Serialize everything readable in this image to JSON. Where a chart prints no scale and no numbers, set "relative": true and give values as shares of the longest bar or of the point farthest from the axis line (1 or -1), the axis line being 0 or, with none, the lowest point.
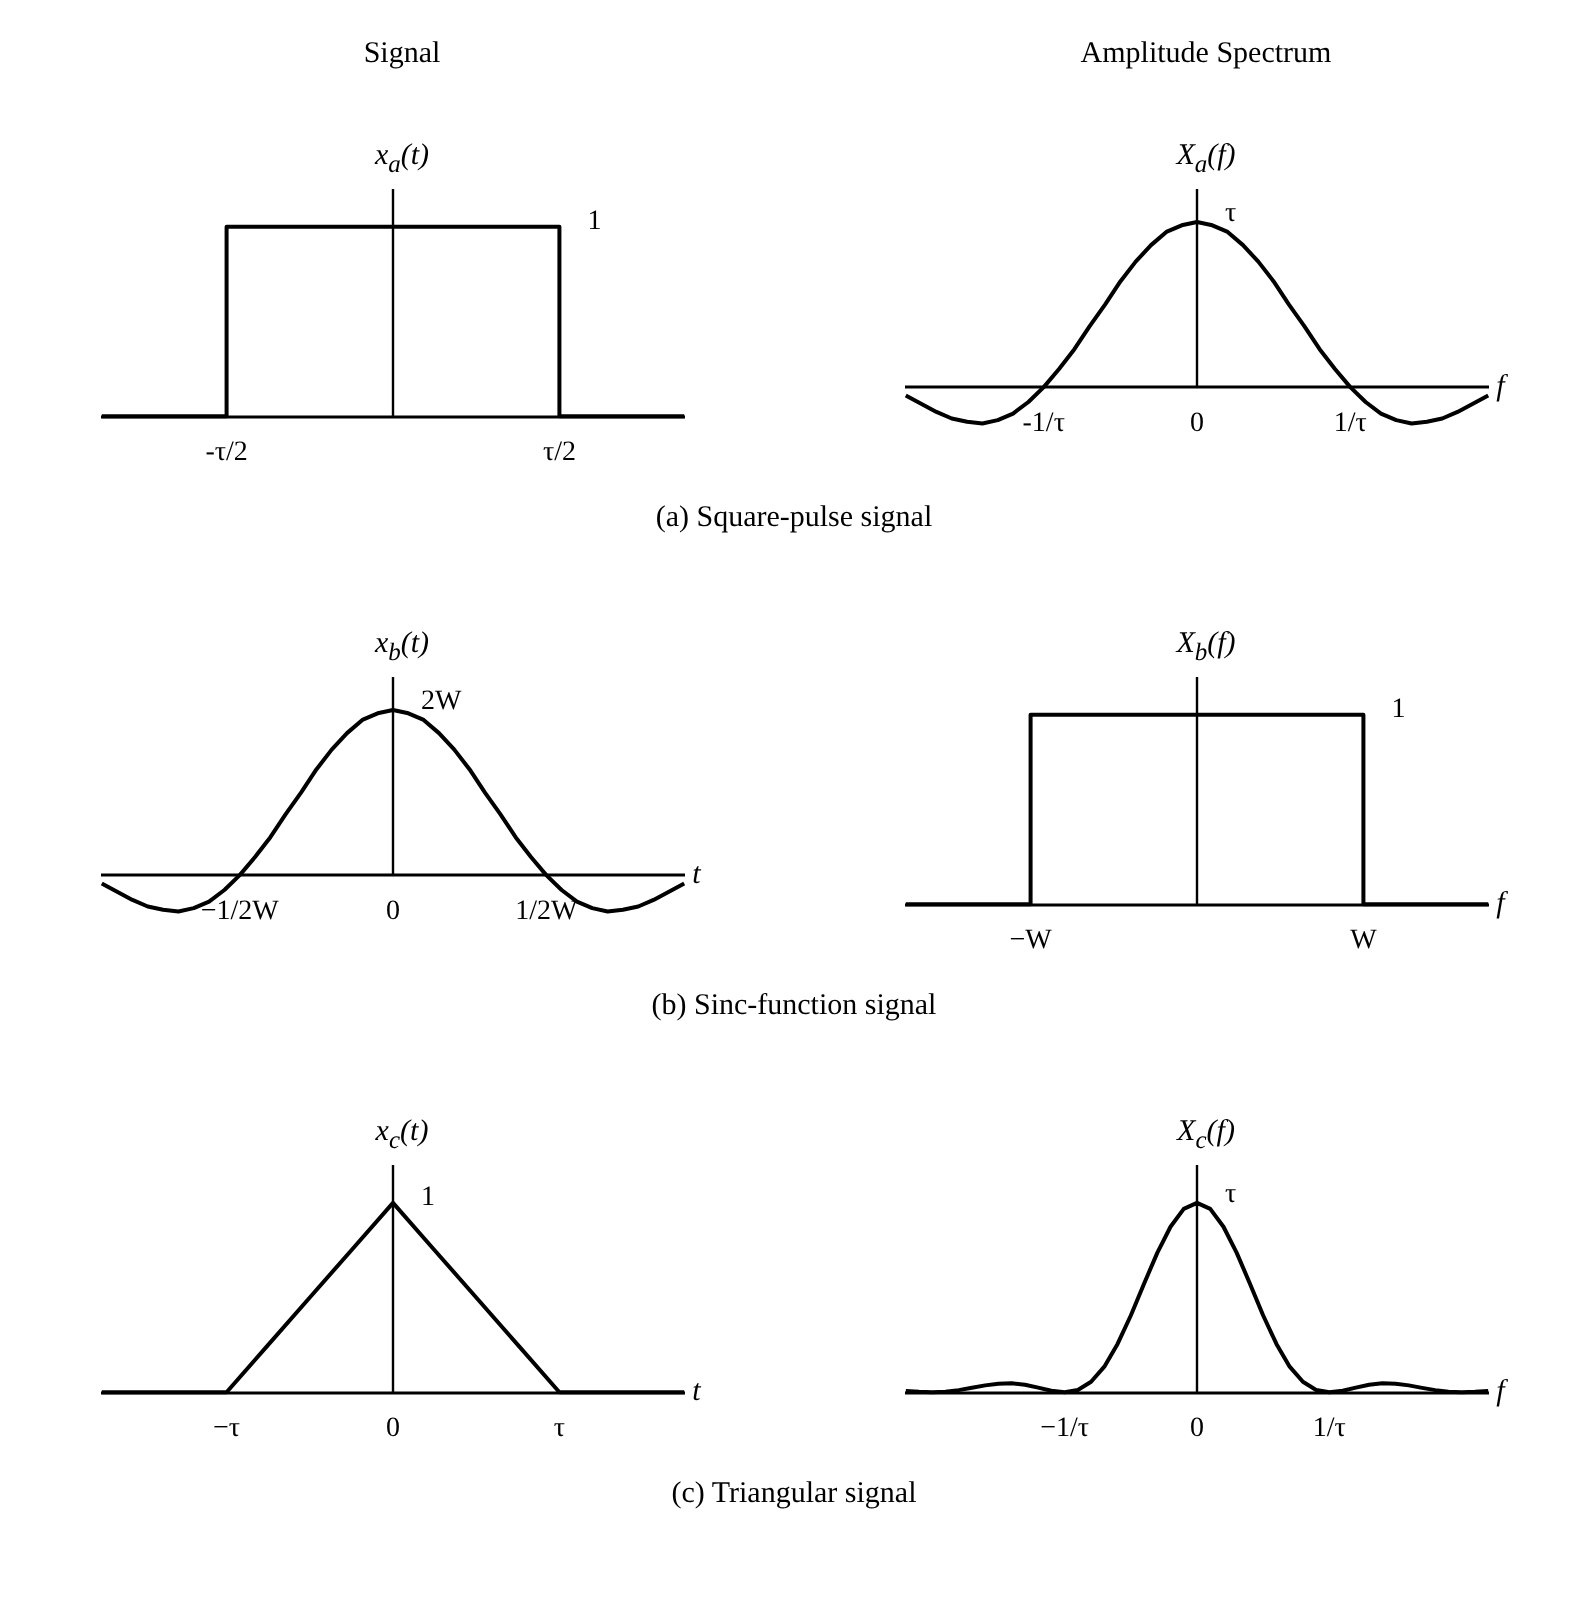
{
  "chart_data": [
    {
      "type": "step",
      "title": "Signal",
      "ylabel": "x$_{a}$(t)",
      "relative": true,
      "color": "#000000",
      "categories": [
        null,
        null,
        null,
        "-τ/2",
        null,
        null,
        null,
        null,
        null,
        null,
        null,
        "τ/2",
        null,
        null,
        null
      ],
      "values": [
        0,
        0,
        0,
        1,
        1,
        1,
        1,
        1,
        1,
        1,
        1,
        0,
        0,
        0,
        0
      ],
      "annotations": [
        {
          "text": "1",
          "x": "τ/2",
          "y": 1
        },
        "(a) Square-pulse signal"
      ]
    },
    {
      "type": "line",
      "title": "Amplitude Spectrum",
      "ylabel": "X$_{a}$(f)",
      "xlabel": "f",
      "relative": true,
      "color": "#000000",
      "categories": [
        null,
        null,
        null,
        null,
        null,
        null,
        null,
        null,
        null,
        "-1/τ",
        null,
        null,
        null,
        null,
        null,
        null,
        null,
        null,
        null,
        "0",
        null,
        null,
        null,
        null,
        null,
        null,
        null,
        null,
        null,
        "1/τ",
        null,
        null,
        null,
        null,
        null,
        null,
        null,
        null,
        null
      ],
      "values": [
        -0.05,
        -0.1,
        -0.15,
        -0.19,
        -0.21,
        -0.22,
        -0.2,
        -0.16,
        -0.09,
        0,
        0.11,
        0.23,
        0.37,
        0.5,
        0.64,
        0.76,
        0.86,
        0.94,
        0.98,
        1,
        0.98,
        0.94,
        0.86,
        0.76,
        0.64,
        0.5,
        0.37,
        0.23,
        0.11,
        0,
        -0.09,
        -0.16,
        -0.2,
        -0.22,
        -0.21,
        -0.19,
        -0.15,
        -0.1,
        -0.05
      ],
      "annotations": [
        {
          "text": "τ",
          "x": "0",
          "y": 1
        }
      ]
    },
    {
      "type": "line",
      "ylabel": "x$_{b}$(t)",
      "xlabel": "t",
      "relative": true,
      "color": "#000000",
      "categories": [
        null,
        null,
        null,
        null,
        null,
        null,
        null,
        null,
        null,
        "−1/2W",
        null,
        null,
        null,
        null,
        null,
        null,
        null,
        null,
        null,
        "0",
        null,
        null,
        null,
        null,
        null,
        null,
        null,
        null,
        null,
        "1/2W",
        null,
        null,
        null,
        null,
        null,
        null,
        null,
        null,
        null
      ],
      "values": [
        -0.05,
        -0.1,
        -0.15,
        -0.19,
        -0.21,
        -0.22,
        -0.2,
        -0.16,
        -0.09,
        0,
        0.11,
        0.23,
        0.37,
        0.5,
        0.64,
        0.76,
        0.86,
        0.94,
        0.98,
        1,
        0.98,
        0.94,
        0.86,
        0.76,
        0.64,
        0.5,
        0.37,
        0.23,
        0.11,
        0,
        -0.09,
        -0.16,
        -0.2,
        -0.22,
        -0.21,
        -0.19,
        -0.15,
        -0.1,
        -0.05
      ],
      "annotations": [
        {
          "text": "2W",
          "x": "0",
          "y": 1
        },
        "(b) Sinc-function signal"
      ]
    },
    {
      "type": "step",
      "ylabel": "X$_{b}$(f)",
      "xlabel": "f",
      "relative": true,
      "color": "#000000",
      "categories": [
        null,
        null,
        null,
        "−W",
        null,
        null,
        null,
        null,
        null,
        null,
        null,
        "W",
        null,
        null,
        null
      ],
      "values": [
        0,
        0,
        0,
        1,
        1,
        1,
        1,
        1,
        1,
        1,
        1,
        0,
        0,
        0,
        0
      ],
      "annotations": [
        {
          "text": "1",
          "x": "W",
          "y": 1
        }
      ]
    },
    {
      "type": "line",
      "ylabel": "x$_{c}$(t)",
      "xlabel": "t",
      "relative": true,
      "color": "#000000",
      "categories": [
        null,
        null,
        null,
        "−τ",
        null,
        null,
        null,
        "0",
        null,
        null,
        null,
        "τ",
        null,
        null,
        null
      ],
      "values": [
        0,
        0,
        0,
        0,
        0.25,
        0.5,
        0.75,
        1,
        0.75,
        0.5,
        0.25,
        0,
        0,
        0,
        0
      ],
      "annotations": [
        {
          "text": "1",
          "x": "0",
          "y": 1
        },
        "(c) Triangular signal"
      ]
    },
    {
      "type": "line",
      "ylabel": "X$_{c}$(f)",
      "xlabel": "f",
      "relative": true,
      "color": "#000000",
      "categories": [
        null,
        null,
        null,
        null,
        null,
        null,
        null,
        null,
        null,
        null,
        null,
        null,
        "−1/τ",
        null,
        null,
        null,
        null,
        null,
        null,
        null,
        null,
        null,
        "0",
        null,
        null,
        null,
        null,
        null,
        null,
        null,
        null,
        null,
        "1/τ",
        null,
        null,
        null,
        null,
        null,
        null,
        null,
        null,
        null,
        null,
        null,
        null
      ],
      "values": [
        0.007,
        0.002,
        0,
        0.003,
        0.011,
        0.023,
        0.036,
        0.045,
        0.047,
        0.039,
        0.024,
        0.008,
        0,
        0.012,
        0.055,
        0.135,
        0.255,
        0.405,
        0.573,
        0.736,
        0.874,
        0.968,
        1,
        0.968,
        0.874,
        0.736,
        0.573,
        0.405,
        0.255,
        0.135,
        0.055,
        0.012,
        0,
        0.008,
        0.024,
        0.039,
        0.047,
        0.045,
        0.036,
        0.023,
        0.011,
        0.003,
        0,
        0.002,
        0.007
      ],
      "annotations": [
        {
          "text": "τ",
          "x": "0",
          "y": 1
        }
      ]
    }
  ]
}
